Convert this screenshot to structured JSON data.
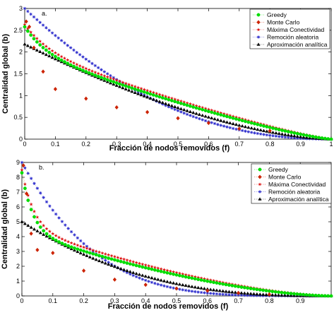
{
  "chart_data": [
    {
      "type": "scatter",
      "panel_label": "a.",
      "xlabel": "Fracción de nodos removidos (f)",
      "ylabel": "Centralidad global (b)",
      "xlim": [
        0,
        1
      ],
      "ylim": [
        0,
        3
      ],
      "xticks": [
        0,
        0.1,
        0.2,
        0.3,
        0.4,
        0.5,
        0.6,
        0.7,
        0.8,
        0.9,
        1
      ],
      "xticklabels": [
        "0",
        "0.1",
        "0.2",
        "0.3",
        "0.4",
        "0.5",
        "0.6",
        "0.7",
        "0.8",
        "0.9",
        "1"
      ],
      "yticks": [
        0,
        0.5,
        1,
        1.5,
        2,
        2.5,
        3
      ],
      "yticklabels": [
        "0",
        "0.5",
        "1",
        "1.5",
        "2",
        "2.5",
        "3"
      ],
      "legend_position": "top-right",
      "series": [
        {
          "name": "Greedy",
          "color": "#00dd00",
          "marker": "circle",
          "curve": {
            "kind": "decay",
            "y0": 2.58,
            "ymid": 2.0,
            "amp": 1.65,
            "k": 14,
            "p": 1.25
          }
        },
        {
          "name": "Monte Carlo",
          "color": "#cc2200",
          "marker": "diamond",
          "x": [
            0.005,
            0.015,
            0.03,
            0.06,
            0.1,
            0.2,
            0.3,
            0.4,
            0.5,
            0.6,
            0.7,
            0.8
          ],
          "y": [
            2.7,
            2.58,
            2.1,
            1.55,
            1.15,
            0.93,
            0.73,
            0.62,
            0.48,
            0.37,
            0.24,
            0.19
          ]
        },
        {
          "name": "Máxima Conectividad",
          "color": "#dd1111",
          "marker": "star",
          "curve": {
            "kind": "decay",
            "y0": 2.63,
            "ymid": 2.05,
            "amp": 1.6,
            "k": 12,
            "p": 1.2
          }
        },
        {
          "name": "Remoción aleatoria",
          "color": "#2a2acc",
          "marker": "asterisk",
          "curve": {
            "kind": "power",
            "y0": 3.0,
            "p": 2.2
          }
        },
        {
          "name": "Aproximación analítica",
          "color": "#000000",
          "marker": "triangle",
          "curve": {
            "kind": "power",
            "y0": 2.18,
            "p": 1.6
          }
        }
      ]
    },
    {
      "type": "scatter",
      "panel_label": "b.",
      "xlabel": "Fracción de nodos removidos (f)",
      "ylabel": "Centralidad global (b)",
      "xlim": [
        0,
        1
      ],
      "ylim": [
        0,
        9
      ],
      "xticks": [
        0,
        0.1,
        0.2,
        0.3,
        0.4,
        0.5,
        0.6,
        0.7,
        0.8,
        0.9
      ],
      "xticklabels": [
        "0",
        "0.1",
        "0.2",
        "0.3",
        "0.4",
        "0.5",
        "0.6",
        "0.7",
        "0.8",
        "0.9"
      ],
      "yticks": [
        0,
        1,
        2,
        3,
        4,
        5,
        6,
        7,
        8,
        9
      ],
      "yticklabels": [
        "0",
        "1",
        "2",
        "3",
        "4",
        "5",
        "6",
        "7",
        "8",
        "9"
      ],
      "legend_position": "top-right",
      "series": [
        {
          "name": "Greedy",
          "color": "#00dd00",
          "marker": "circle",
          "curve": {
            "kind": "decay",
            "y0": 8.3,
            "ymid": 4.3,
            "amp": 4.2,
            "k": 28,
            "p": 1.6
          }
        },
        {
          "name": "Monte Carlo",
          "color": "#cc2200",
          "marker": "diamond",
          "x": [
            0.005,
            0.015,
            0.03,
            0.05,
            0.1,
            0.2,
            0.3,
            0.4,
            0.5,
            0.6,
            0.7,
            0.8
          ],
          "y": [
            8.8,
            6.9,
            4.2,
            3.1,
            2.9,
            1.7,
            1.1,
            0.75,
            0.5,
            0.35,
            0.2,
            0.1
          ]
        },
        {
          "name": "Máxima Conectividad",
          "color": "#dd1111",
          "marker": "star",
          "curve": {
            "kind": "decay",
            "y0": 8.5,
            "ymid": 4.6,
            "amp": 4.1,
            "k": 26,
            "p": 1.55
          }
        },
        {
          "name": "Remoción aleatoria",
          "color": "#2a2acc",
          "marker": "asterisk",
          "curve": {
            "kind": "power",
            "y0": 9.0,
            "p": 4.2
          }
        },
        {
          "name": "Aproximación analítica",
          "color": "#000000",
          "marker": "triangle",
          "curve": {
            "kind": "power",
            "y0": 5.0,
            "p": 2.6
          }
        }
      ]
    }
  ]
}
